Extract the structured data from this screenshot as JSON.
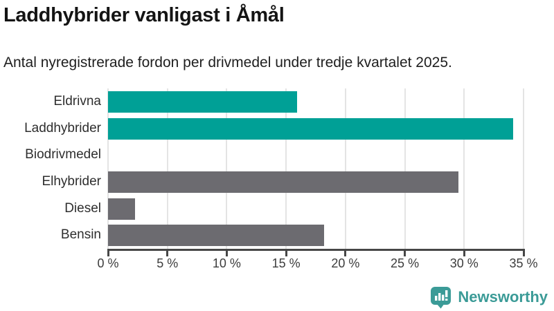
{
  "chart": {
    "title": "Laddhybrider vanligast i Åmål",
    "subtitle": "Antal nyregistrerade fordon per drivmedel under tredje kvartalet 2025."
  },
  "chart_data": {
    "type": "bar",
    "orientation": "horizontal",
    "categories": [
      "Eldrivna",
      "Laddhybrider",
      "Biodrivmedel",
      "Elhybrider",
      "Diesel",
      "Bensin"
    ],
    "values": [
      15.9,
      34.1,
      0,
      29.5,
      2.3,
      18.2
    ],
    "unit": "%",
    "bar_colors": [
      "#00A096",
      "#00A096",
      "#00A096",
      "#6C6B70",
      "#6C6B70",
      "#6C6B70"
    ],
    "title": "Laddhybrider vanligast i Åmål",
    "xlabel": "",
    "ylabel": "",
    "xlim": [
      0,
      35
    ],
    "x_tick_step": 5,
    "x_tick_labels": [
      "0 %",
      "5 %",
      "10 %",
      "15 %",
      "20 %",
      "25 %",
      "30 %",
      "35 %"
    ],
    "grid": "vertical-only",
    "legend": "none"
  },
  "colors": {
    "teal_bar": "#00A096",
    "gray_bar": "#6C6B70",
    "axis": "#474747",
    "gridline": "#e4e4e4",
    "logo_teal": "#3B9B97"
  },
  "footer": {
    "brand": "Newsworthy"
  }
}
